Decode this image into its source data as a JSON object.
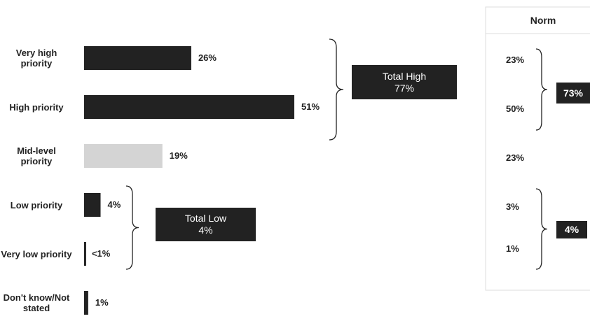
{
  "chart_data": {
    "type": "bar",
    "orientation": "horizontal",
    "categories": [
      "Very high priority",
      "High priority",
      "Mid-level priority",
      "Low priority",
      "Very low priority",
      "Don't know/Not stated"
    ],
    "values": [
      26,
      51,
      19,
      4,
      0.5,
      1
    ],
    "value_labels": [
      "26%",
      "51%",
      "19%",
      "4%",
      "<1%",
      "1%"
    ],
    "colors": [
      "#222222",
      "#222222",
      "#d4d4d4",
      "#222222",
      "#222222",
      "#222222"
    ],
    "totals": [
      {
        "label": "Total High",
        "value": 77,
        "value_label": "77%",
        "from": 0,
        "to": 1
      },
      {
        "label": "Total Low",
        "value": 4,
        "value_label": "4%",
        "from": 3,
        "to": 4
      }
    ],
    "norm": {
      "title": "Norm",
      "values": [
        23,
        50,
        23,
        3,
        1,
        null
      ],
      "value_labels": [
        "23%",
        "50%",
        "23%",
        "3%",
        "1%",
        null
      ],
      "totals": [
        {
          "value": 73,
          "value_label": "73%",
          "from": 0,
          "to": 1
        },
        {
          "value": 4,
          "value_label": "4%",
          "from": 3,
          "to": 4
        }
      ]
    }
  }
}
